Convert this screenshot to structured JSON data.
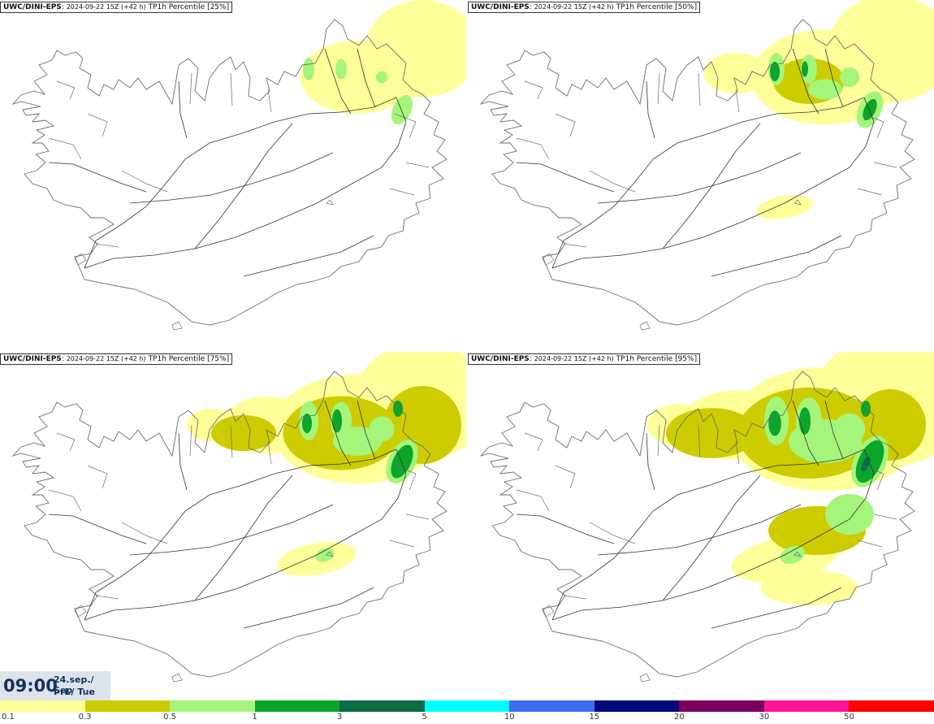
{
  "panels": [
    {
      "model": "UWC/DINI-EPS",
      "run": "2024-09-22 15Z (+42 h)",
      "param": "TP1h Percentile",
      "percentile": "[25%]",
      "level": 1
    },
    {
      "model": "UWC/DINI-EPS",
      "run": "2024-09-22 15Z (+42 h)",
      "param": "TP1h Percentile",
      "percentile": "[50%]",
      "level": 2
    },
    {
      "model": "UWC/DINI-EPS",
      "run": "2024-09-22 15Z (+42 h)",
      "param": "TP1h Percentile",
      "percentile": "[75%]",
      "level": 3
    },
    {
      "model": "UWC/DINI-EPS",
      "run": "2024-09-22 15Z (+42 h)",
      "param": "TP1h Percentile",
      "percentile": "[95%]",
      "level": 4
    }
  ],
  "valid": {
    "time": "09:00",
    "date": "24.sep./ Sep",
    "day": "Þri./ Tue"
  },
  "legend": {
    "colors": [
      "#ffff9a",
      "#cccc00",
      "#a5f57a",
      "#0aa52a",
      "#0b6b45",
      "#00ffff",
      "#3f6bf0",
      "#000a7a",
      "#7a005a",
      "#ff1493",
      "#ff0000"
    ],
    "ticks": [
      "0.1",
      "0.3",
      "0.5",
      "1",
      "3",
      "5",
      "10",
      "15",
      "20",
      "30",
      "50"
    ]
  },
  "colors": {
    "map_outline": "#6e6e6e",
    "roads": "#333333",
    "light_yellow": "#ffff9a",
    "olive": "#cccc00",
    "light_green": "#a5f57a",
    "green": "#0aa52a",
    "dark_green": "#0b6b45"
  }
}
